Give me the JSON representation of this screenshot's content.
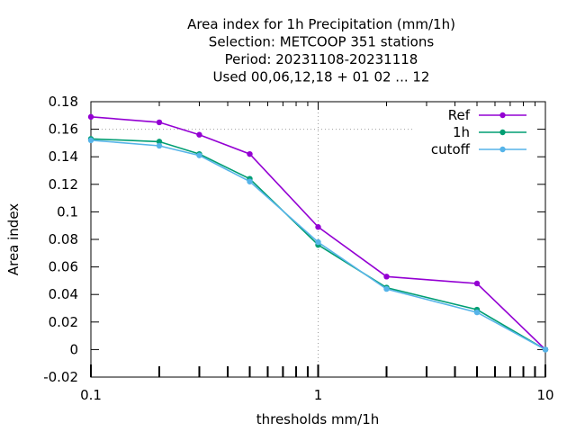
{
  "chart_data": {
    "type": "line",
    "title_lines": [
      "Area index  for 1h Precipitation (mm/1h)",
      "Selection: METCOOP    351 stations",
      "Period: 20231108-20231118",
      "Used  00,06,12,18 + 01 02 ... 12"
    ],
    "xlabel": "thresholds mm/1h",
    "ylabel": "Area index",
    "x_scale": "log",
    "xlim": [
      0.1,
      10
    ],
    "ylim": [
      -0.02,
      0.18
    ],
    "x_ticks": [
      0.1,
      1,
      10
    ],
    "x_tick_labels": [
      "0.1",
      "1",
      "10"
    ],
    "y_ticks": [
      -0.02,
      0,
      0.02,
      0.04,
      0.06,
      0.08,
      0.1,
      0.12,
      0.14,
      0.16,
      0.18
    ],
    "y_tick_labels": [
      "-0.02",
      "0",
      "0.02",
      "0.04",
      "0.06",
      "0.08",
      "0.1",
      "0.12",
      "0.14",
      "0.16",
      "0.18"
    ],
    "grid": "dotted at x = 1 and y = 0.16",
    "legend_position": "top-right",
    "x": [
      0.1,
      0.2,
      0.3,
      0.5,
      1,
      2,
      5,
      10
    ],
    "series": [
      {
        "name": "Ref",
        "color": "#9400d3",
        "values": [
          0.169,
          0.165,
          0.156,
          0.142,
          0.089,
          0.053,
          0.048,
          0.0
        ]
      },
      {
        "name": "1h",
        "color": "#009e73",
        "values": [
          0.153,
          0.151,
          0.142,
          0.124,
          0.076,
          0.045,
          0.029,
          0.0
        ]
      },
      {
        "name": "cutoff",
        "color": "#56b4e9",
        "values": [
          0.152,
          0.148,
          0.141,
          0.122,
          0.078,
          0.044,
          0.027,
          0.0
        ]
      }
    ]
  }
}
